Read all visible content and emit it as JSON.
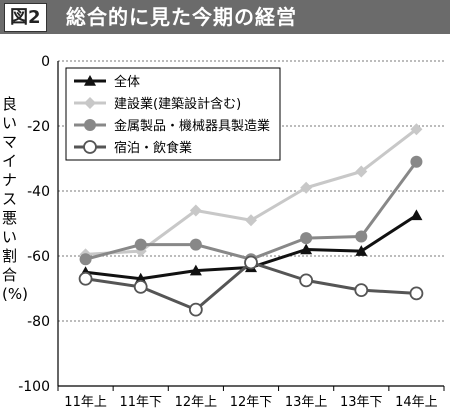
{
  "header": {
    "badge": "図2",
    "title": "総合的に見た今期の経営"
  },
  "chart_data": {
    "type": "line",
    "title": "総合的に見た今期の経営",
    "ylabel": "良いマイナス悪い割合(%)",
    "xlabel": "",
    "categories": [
      "11年上",
      "11年下",
      "12年上",
      "12年下",
      "13年上",
      "13年下",
      "14年上"
    ],
    "ylim": [
      -100,
      0
    ],
    "yticks": [
      0,
      -20,
      -40,
      -60,
      -80,
      -100
    ],
    "grid": true,
    "legend_position": "top-left",
    "series": [
      {
        "name": "全体",
        "values": [
          -65,
          -67,
          -64.5,
          -63.5,
          -58,
          -58.5,
          -47.5
        ],
        "color": "#111111",
        "marker": "triangle",
        "width": 3
      },
      {
        "name": "建設業(建築設計含む)",
        "values": [
          -59.5,
          -58.5,
          -46,
          -49,
          -39,
          -34,
          -21
        ],
        "color": "#c8c8c8",
        "marker": "diamond",
        "width": 3
      },
      {
        "name": "金属製品・機械器具製造業",
        "values": [
          -61,
          -56.5,
          -56.5,
          -61,
          -54.5,
          -54,
          -31
        ],
        "color": "#888888",
        "marker": "circle",
        "width": 3
      },
      {
        "name": "宿泊・飲食業",
        "values": [
          -67,
          -69.5,
          -76.5,
          -62,
          -67.5,
          -70.5,
          -71.5
        ],
        "color": "#555555",
        "marker": "open-circle",
        "width": 3
      }
    ]
  }
}
